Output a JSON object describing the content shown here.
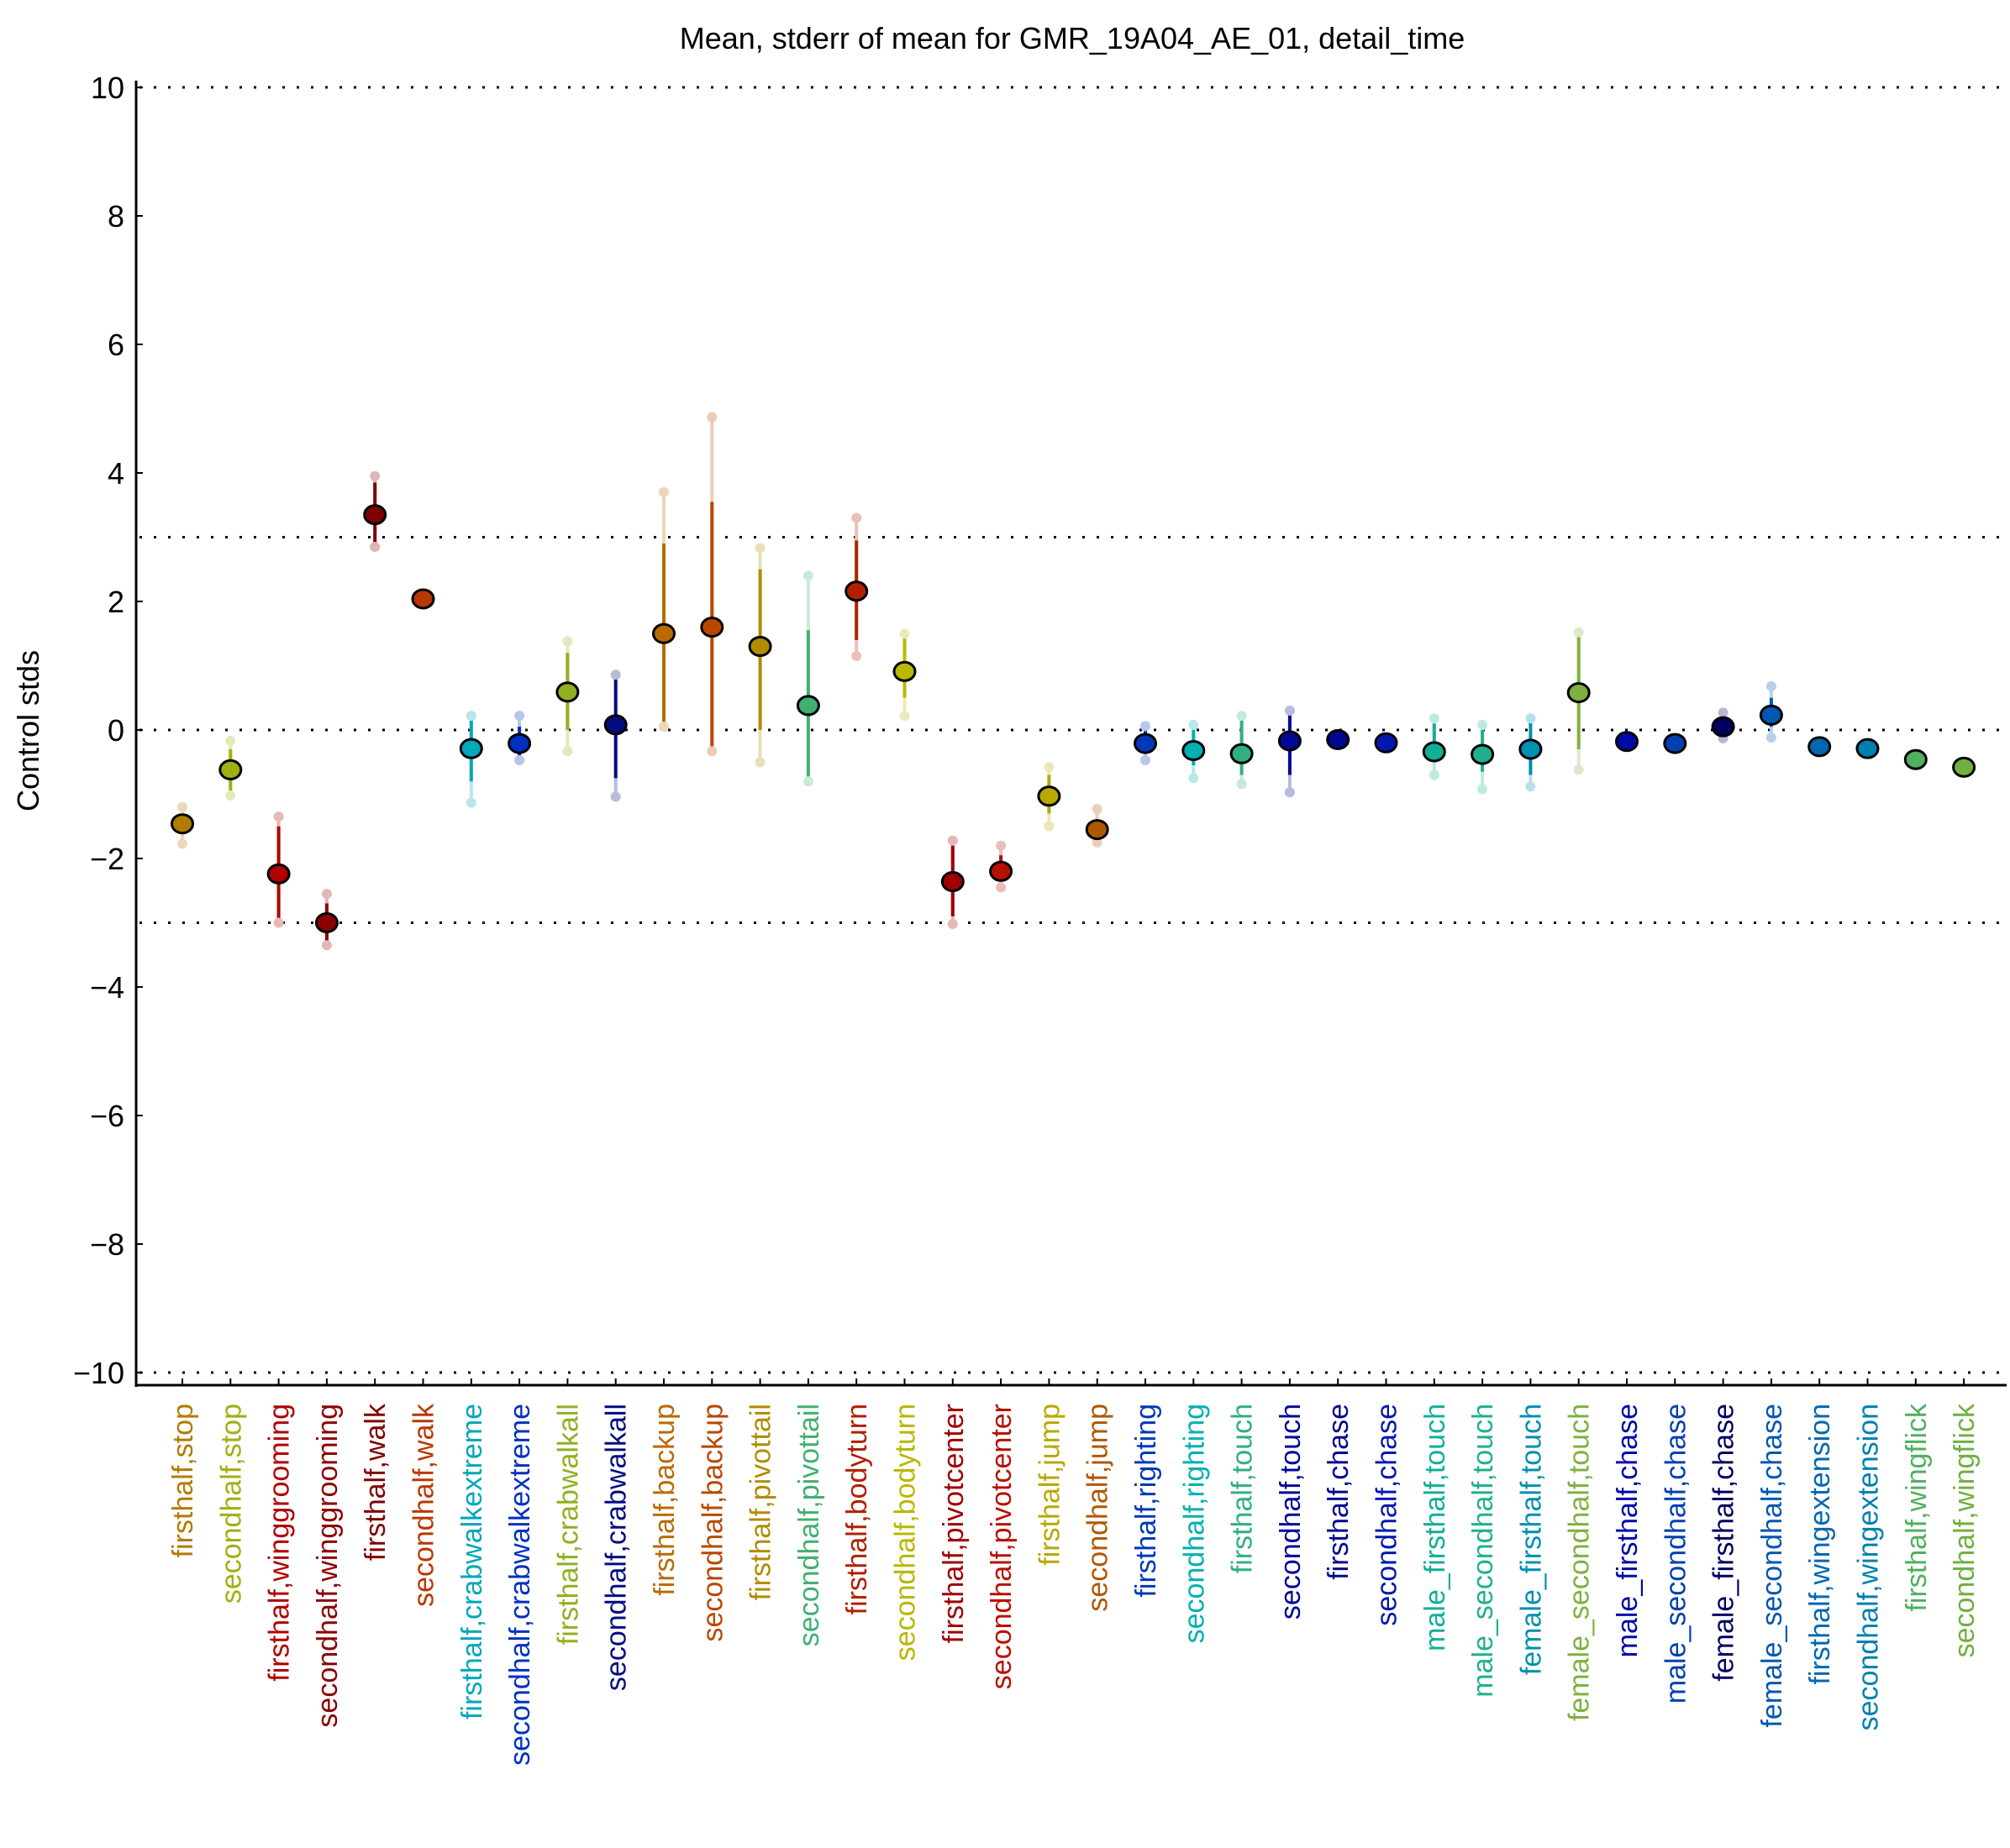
{
  "chart_data": {
    "type": "scatter",
    "subtype": "errorbar",
    "title": "Mean, stderr of mean for GMR_19A04_AE_01, detail_time",
    "xlabel": "",
    "ylabel": "Control stds",
    "ylim": [
      -10,
      10
    ],
    "yticks": [
      -10,
      -8,
      -6,
      -4,
      -2,
      0,
      2,
      4,
      6,
      8,
      10
    ],
    "ytick_labels": [
      "−10",
      "−8",
      "−6",
      "−4",
      "−2",
      "0",
      "2",
      "4",
      "6",
      "8",
      "10"
    ],
    "reference_lines": [
      -10,
      -3,
      0,
      3,
      10
    ],
    "grid": false,
    "legend": "none",
    "categories": [
      "firsthalf,stop",
      "secondhalf,stop",
      "firsthalf,winggrooming",
      "secondhalf,winggrooming",
      "firsthalf,walk",
      "secondhalf,walk",
      "firsthalf,crabwalkextreme",
      "secondhalf,crabwalkextreme",
      "firsthalf,crabwalkall",
      "secondhalf,crabwalkall",
      "firsthalf,backup",
      "secondhalf,backup",
      "firsthalf,pivottail",
      "secondhalf,pivottail",
      "firsthalf,bodyturn",
      "secondhalf,bodyturn",
      "firsthalf,pivotcenter",
      "secondhalf,pivotcenter",
      "firsthalf,jump",
      "secondhalf,jump",
      "firsthalf,righting",
      "secondhalf,righting",
      "firsthalf,touch",
      "secondhalf,touch",
      "firsthalf,chase",
      "secondhalf,chase",
      "male_firsthalf,touch",
      "male_secondhalf,touch",
      "female_firsthalf,touch",
      "female_secondhalf,touch",
      "male_firsthalf,chase",
      "male_secondhalf,chase",
      "female_firsthalf,chase",
      "female_secondhalf,chase",
      "firsthalf,wingextension",
      "secondhalf,wingextension",
      "firsthalf,wingflick",
      "secondhalf,wingflick"
    ],
    "mean": [
      -1.46,
      -0.62,
      -2.24,
      -3.0,
      3.35,
      2.04,
      -0.29,
      -0.21,
      0.59,
      0.08,
      1.5,
      1.6,
      1.3,
      0.38,
      2.16,
      0.91,
      -2.36,
      -2.2,
      -1.03,
      -1.55,
      -0.21,
      -0.32,
      -0.37,
      -0.17,
      -0.15,
      -0.2,
      -0.34,
      -0.38,
      -0.3,
      0.58,
      -0.18,
      -0.21,
      0.05,
      0.23,
      -0.26,
      -0.29,
      -0.46,
      -0.58
    ],
    "stderr_low": [
      -1.6,
      -0.95,
      -3.0,
      -3.3,
      2.9,
      2.04,
      -0.8,
      -0.4,
      0.0,
      -0.75,
      0.05,
      -0.33,
      0.0,
      -0.8,
      1.4,
      0.5,
      -2.9,
      -2.35,
      -1.3,
      -1.7,
      -0.35,
      -0.55,
      -0.7,
      -0.7,
      -0.15,
      -0.2,
      -0.5,
      -0.65,
      -0.7,
      -0.3,
      -0.18,
      -0.21,
      -0.05,
      0.05,
      -0.26,
      -0.29,
      -0.46,
      -0.58
    ],
    "stderr_high": [
      -1.3,
      -0.3,
      -1.5,
      -2.7,
      3.85,
      2.04,
      0.2,
      0.05,
      1.2,
      0.85,
      2.9,
      3.55,
      2.5,
      1.55,
      2.95,
      1.45,
      -1.8,
      -1.95,
      -0.7,
      -1.4,
      0.0,
      0.0,
      0.15,
      0.3,
      -0.15,
      -0.2,
      0.1,
      0.0,
      0.15,
      1.5,
      -0.18,
      -0.21,
      0.2,
      0.5,
      -0.26,
      -0.29,
      -0.46,
      -0.58
    ],
    "range_low": [
      -1.77,
      -1.02,
      -3.0,
      -3.35,
      2.85,
      2.04,
      -1.13,
      -0.47,
      -0.33,
      -1.04,
      0.05,
      -0.33,
      -0.5,
      -0.8,
      1.15,
      0.22,
      -3.02,
      -2.45,
      -1.5,
      -1.75,
      -0.47,
      -0.75,
      -0.84,
      -0.97,
      -0.15,
      -0.2,
      -0.7,
      -0.92,
      -0.88,
      -0.62,
      -0.18,
      -0.21,
      -0.13,
      -0.12,
      -0.26,
      -0.29,
      -0.46,
      -0.58
    ],
    "range_high": [
      -1.2,
      -0.17,
      -1.35,
      -2.55,
      3.95,
      2.04,
      0.22,
      0.22,
      1.38,
      0.86,
      3.7,
      4.87,
      2.83,
      2.4,
      3.3,
      1.5,
      -1.72,
      -1.8,
      -0.58,
      -1.23,
      0.06,
      0.08,
      0.22,
      0.3,
      -0.15,
      -0.2,
      0.18,
      0.08,
      0.18,
      1.52,
      -0.18,
      -0.21,
      0.27,
      0.68,
      -0.26,
      -0.29,
      -0.46,
      -0.58
    ],
    "colors": [
      "#b07c00",
      "#a0b010",
      "#b00000",
      "#8c0000",
      "#800000",
      "#b83800",
      "#00a8b8",
      "#0030c0",
      "#90b020",
      "#000c80",
      "#b86c00",
      "#b84800",
      "#b08c00",
      "#40b070",
      "#b02000",
      "#b8b800",
      "#a00000",
      "#b81000",
      "#b8a800",
      "#b05800",
      "#0038b8",
      "#00b0b0",
      "#30b080",
      "#000898",
      "#000890",
      "#0018b0",
      "#10b098",
      "#20b090",
      "#0090b0",
      "#80b040",
      "#0008a8",
      "#0040b0",
      "#000060",
      "#0058b0",
      "#0068b0",
      "#0080b0",
      "#50b060",
      "#70b040"
    ]
  }
}
